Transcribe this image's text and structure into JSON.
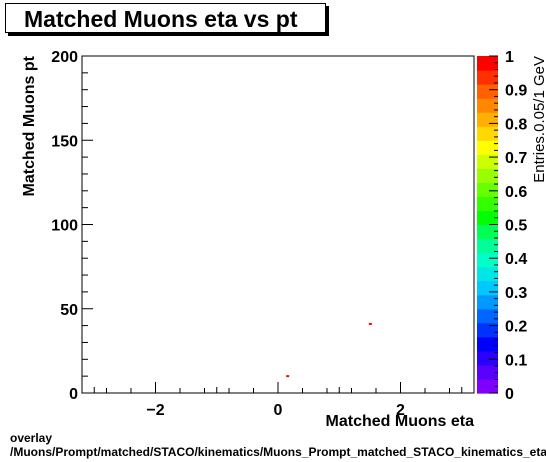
{
  "title": "Matched Muons eta vs pt",
  "footer": {
    "line1": "overlay",
    "line2": "/Muons/Prompt/matched/STACO/kinematics/Muons_Prompt_matched_STACO_kinematics_eta_pt"
  },
  "chart_data": {
    "type": "heatmap",
    "title": "Matched Muons eta vs pt",
    "xlabel": "Matched Muons eta",
    "ylabel": "Matched Muons pt",
    "zlabel": "Entries.0.05/1 GeV",
    "xlim": [
      -3.2,
      3.2
    ],
    "ylim": [
      0,
      200
    ],
    "zlim": [
      0,
      1
    ],
    "x_ticks": [
      -2,
      0,
      2
    ],
    "x_tick_labels": [
      "−2",
      "0",
      "2"
    ],
    "y_ticks": [
      0,
      50,
      100,
      150,
      200
    ],
    "y_tick_labels": [
      "0",
      "50",
      "100",
      "150",
      "200"
    ],
    "z_ticks": [
      0,
      0.1,
      0.2,
      0.3,
      0.4,
      0.5,
      0.6,
      0.7,
      0.8,
      0.9,
      1
    ],
    "z_tick_labels": [
      "0",
      "0.1",
      "0.2",
      "0.3",
      "0.4",
      "0.5",
      "0.6",
      "0.7",
      "0.8",
      "0.9",
      "1"
    ],
    "points": [
      {
        "x": 0.15,
        "y": 10,
        "z": 1
      },
      {
        "x": 1.5,
        "y": 41,
        "z": 1
      }
    ],
    "palette": [
      "#7f00ff",
      "#5a00ff",
      "#2a00ff",
      "#0000ff",
      "#0033ff",
      "#0066ff",
      "#0099ff",
      "#00c8ff",
      "#00e6e6",
      "#00ffc8",
      "#00ff99",
      "#00ff55",
      "#00ff00",
      "#33ff00",
      "#66ff00",
      "#99ff00",
      "#ccff00",
      "#ffff00",
      "#ffd800",
      "#ffb000",
      "#ff8800",
      "#ff6000",
      "#ff3000",
      "#ff0000"
    ]
  }
}
